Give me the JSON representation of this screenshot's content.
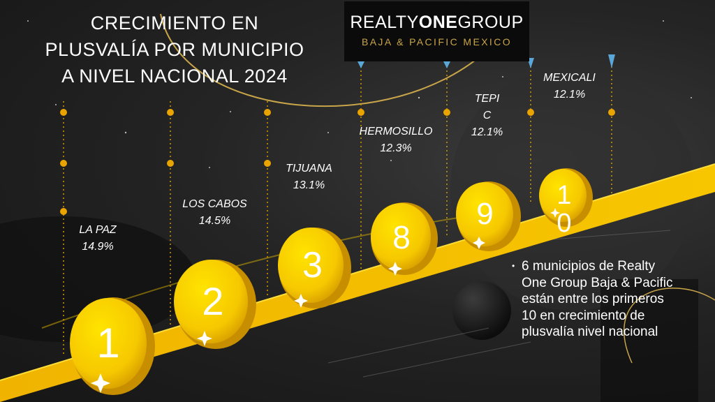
{
  "title": {
    "line1": "CRECIMIENTO EN",
    "line2": "PLUSVALÍA POR MUNICIPIO",
    "line3": "A NIVEL NACIONAL 2024"
  },
  "logo": {
    "main_left": "REALTY",
    "main_mid": "ONE",
    "main_right": "GROUP",
    "sub": "BAJA & PACIFIC MEXICO"
  },
  "cities": [
    {
      "name": "LA PAZ",
      "value": "14.9%",
      "rank": "1"
    },
    {
      "name": "LOS CABOS",
      "value": "14.5%",
      "rank": "2"
    },
    {
      "name": "TIJUANA",
      "value": "13.1%",
      "rank": "3"
    },
    {
      "name": "HERMOSILLO",
      "value": "12.3%",
      "rank": "8"
    },
    {
      "name_line1": "TEPI",
      "name_line2": "C",
      "value": "12.1%",
      "rank": "9"
    },
    {
      "name": "MEXICALI",
      "value": "12.1%",
      "rank_line1": "1",
      "rank_line2": "0"
    }
  ],
  "note": {
    "bullet": "•",
    "text": "6 municipios de Realty One Group Baja & Pacific están entre los primeros 10 en crecimiento de plusvalía nivel nacional"
  },
  "colors": {
    "gold": "#f2c400",
    "coin_dark": "#d9a300",
    "ramp": "#e6b000",
    "dot": "#e9a400",
    "background": "#1c1c1c"
  }
}
